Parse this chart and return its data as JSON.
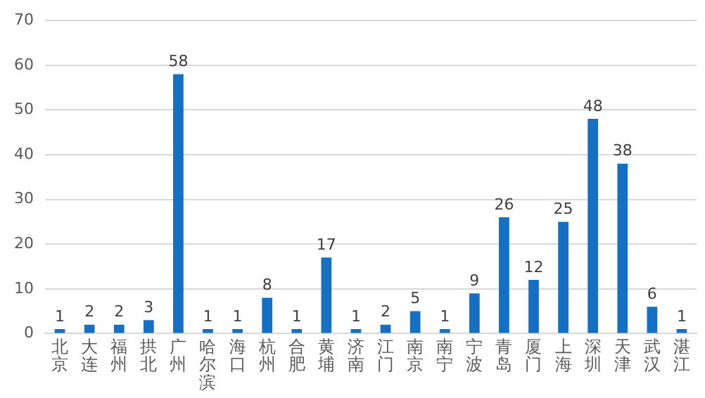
{
  "chart_data": {
    "type": "bar",
    "categories": [
      "北京",
      "大连",
      "福州",
      "拱北",
      "广州",
      "哈尔滨",
      "海口",
      "杭州",
      "合肥",
      "黄埔",
      "济南",
      "江门",
      "南京",
      "南宁",
      "宁波",
      "青岛",
      "厦门",
      "上海",
      "深圳",
      "天津",
      "武汉",
      "湛江"
    ],
    "values": [
      1,
      2,
      2,
      3,
      58,
      1,
      1,
      8,
      1,
      17,
      1,
      2,
      5,
      1,
      9,
      26,
      12,
      25,
      48,
      38,
      6,
      1
    ],
    "color": "#1570c4",
    "ylim": [
      0,
      70
    ],
    "yticks": [
      0,
      10,
      20,
      30,
      40,
      50,
      60,
      70
    ],
    "grid": "y",
    "data_labels": true
  }
}
